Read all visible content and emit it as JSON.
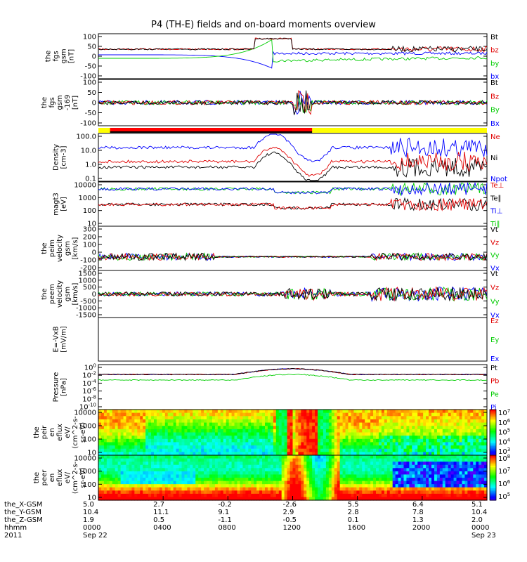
{
  "title": "P4 (TH-E) fields and on-board moments overview",
  "chart_data": {
    "type": "line",
    "x_tick_times": [
      "0000",
      "0400",
      "0800",
      "1200",
      "1600",
      "2000",
      "0000"
    ],
    "panels": [
      {
        "ylabel": [
          "the",
          "fgs",
          "gsm",
          "[nT]"
        ],
        "y_ticks": [
          "100",
          "50",
          "0",
          "-50",
          "-100"
        ],
        "ylim": [
          -100,
          100
        ],
        "legend": [
          {
            "label": "Bt",
            "color": "#000000"
          },
          {
            "label": "bz",
            "color": "#e00000"
          },
          {
            "label": "by",
            "color": "#00cc00"
          },
          {
            "label": "bx",
            "color": "#0000ff"
          }
        ]
      },
      {
        "ylabel": [
          "the",
          "fgs",
          "gsm",
          "-169",
          "[nT]"
        ],
        "y_ticks": [
          "100",
          "50",
          "0",
          "-50",
          "-100"
        ],
        "ylim": [
          -100,
          100
        ],
        "legend": [
          {
            "label": "Bt",
            "color": "#000000"
          },
          {
            "label": "Bz",
            "color": "#e00000"
          },
          {
            "label": "By",
            "color": "#00cc00"
          },
          {
            "label": "Bx",
            "color": "#0000ff"
          }
        ]
      },
      {
        "ylabel": [
          "Density",
          "[cm-3]"
        ],
        "y_ticks": [
          "100.0",
          "10.0",
          "1.0",
          "0.1"
        ],
        "scale": "log",
        "legend": [
          {
            "label": "Ne",
            "color": "#e00000"
          },
          {
            "label": "Ni",
            "color": "#000000"
          },
          {
            "label": "Npot",
            "color": "#0000ff"
          }
        ]
      },
      {
        "ylabel": [
          "magt3",
          "[eV]"
        ],
        "y_ticks": [
          "10000",
          "1000",
          "100",
          "10"
        ],
        "scale": "log",
        "legend": [
          {
            "label": "Te⊥",
            "color": "#e00000"
          },
          {
            "label": "Te∥",
            "color": "#000000"
          },
          {
            "label": "Ti⊥",
            "color": "#0000ff"
          },
          {
            "label": "Ti∥",
            "color": "#00cc00"
          }
        ]
      },
      {
        "ylabel": [
          "the",
          "peim",
          "velocity",
          "gsm",
          "[km/s]"
        ],
        "y_ticks": [
          "300",
          "200",
          "100",
          "0",
          "-100",
          "-200"
        ],
        "ylim": [
          -200,
          300
        ],
        "legend": [
          {
            "label": "Vt",
            "color": "#000000"
          },
          {
            "label": "Vz",
            "color": "#e00000"
          },
          {
            "label": "Vy",
            "color": "#00cc00"
          },
          {
            "label": "Vx",
            "color": "#0000ff"
          }
        ]
      },
      {
        "ylabel": [
          "the",
          "peem",
          "velocity",
          "gsm",
          "[km/s]"
        ],
        "y_ticks": [
          "1500",
          "1000",
          "500",
          "0",
          "-500",
          "-1000",
          "-1500"
        ],
        "ylim": [
          -1500,
          1500
        ],
        "legend": [
          {
            "label": "Vt",
            "color": "#000000"
          },
          {
            "label": "Vz",
            "color": "#e00000"
          },
          {
            "label": "Vy",
            "color": "#00cc00"
          },
          {
            "label": "Vx",
            "color": "#0000ff"
          }
        ]
      },
      {
        "ylabel": [
          "E=-VxB",
          "[mV/m]"
        ],
        "y_ticks": [],
        "legend": [
          {
            "label": "Ez",
            "color": "#e00000"
          },
          {
            "label": "Ey",
            "color": "#00cc00"
          },
          {
            "label": "Ex",
            "color": "#0000ff"
          }
        ]
      },
      {
        "ylabel": [
          "Pressure",
          "[nPa]"
        ],
        "y_ticks": [
          "10^0",
          "10^-2",
          "10^-4",
          "10^-6",
          "10^-8",
          "10^-10"
        ],
        "scale": "log",
        "legend": [
          {
            "label": "Pt",
            "color": "#000000"
          },
          {
            "label": "Pb",
            "color": "#e00000"
          },
          {
            "label": "Pe",
            "color": "#00cc00"
          },
          {
            "label": "Pi",
            "color": "#0000ff"
          }
        ]
      },
      {
        "type": "heatmap",
        "ylabel": [
          "the",
          "peir",
          "en",
          "eflux",
          "eV/",
          "(cm^2-s-",
          "sr-eV)"
        ],
        "y_ticks": [
          "10000",
          "1000",
          "100",
          "10"
        ],
        "scale": "log",
        "colorbar_ticks": [
          "10^7",
          "10^6",
          "10^5",
          "10^4",
          "10^3"
        ]
      },
      {
        "type": "heatmap",
        "ylabel": [
          "the",
          "peer",
          "en",
          "eflux",
          "eV/",
          "(cm^2-s-",
          "sr-eV)"
        ],
        "y_ticks": [
          "10000",
          "1000",
          "100",
          "10"
        ],
        "scale": "log",
        "colorbar_ticks": [
          "10^8",
          "10^7",
          "10^6",
          "10^5"
        ]
      }
    ]
  },
  "footer": {
    "rows": [
      {
        "label": "the_X-GSM",
        "values": [
          "5.0",
          "2.7",
          "-0.2",
          "-2.6",
          "5.5",
          "6.4",
          "5.1"
        ]
      },
      {
        "label": "the_Y-GSM",
        "values": [
          "10.4",
          "11.1",
          "9.1",
          "2.9",
          "2.8",
          "7.8",
          "10.4"
        ]
      },
      {
        "label": "the_Z-GSM",
        "values": [
          "1.9",
          "0.5",
          "-1.1",
          "-0.5",
          "0.1",
          "1.3",
          "2.0"
        ]
      },
      {
        "label": "hhmm",
        "values": [
          "0000",
          "0400",
          "0800",
          "1200",
          "1600",
          "2000",
          "0000"
        ]
      },
      {
        "label": "2011",
        "values": [
          "Sep 22",
          "",
          "",
          "",
          "",
          "",
          "Sep 23"
        ]
      }
    ]
  }
}
